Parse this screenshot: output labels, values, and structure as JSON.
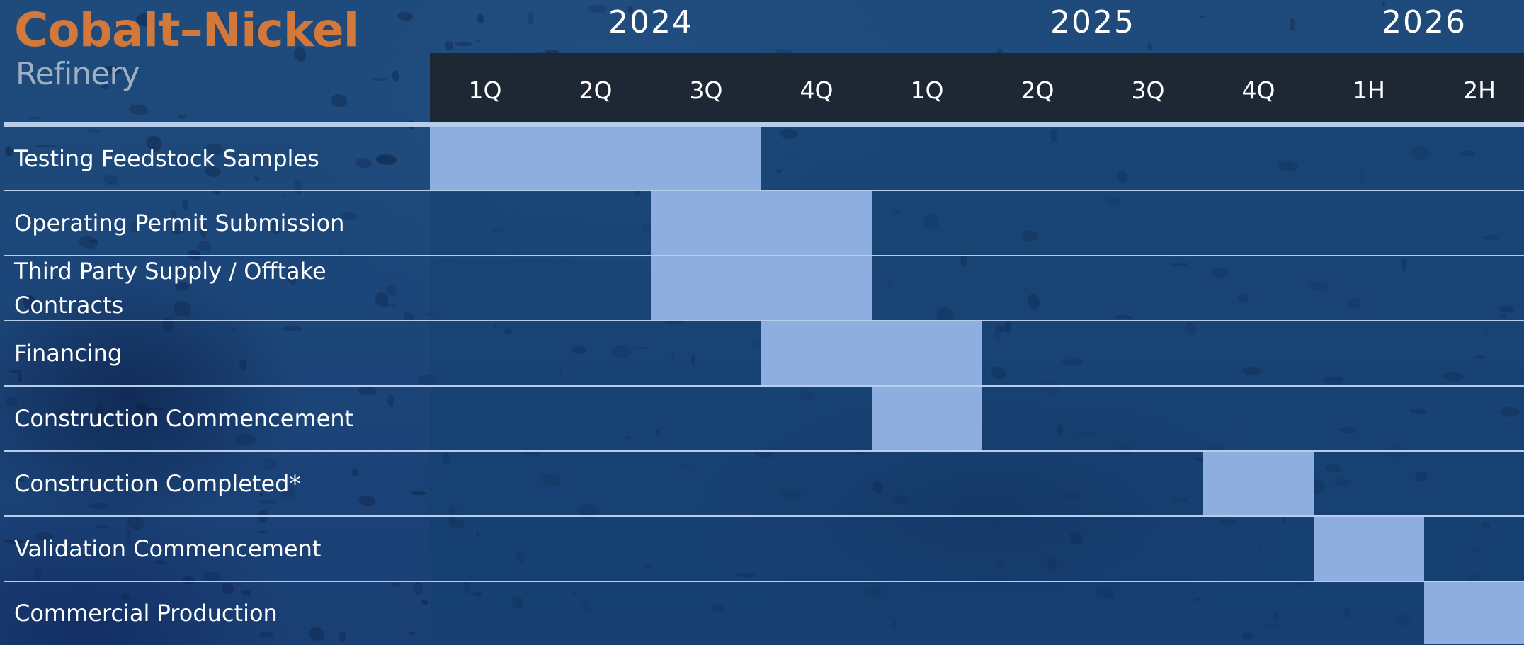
{
  "brand": {
    "title": "Cobalt–Nickel",
    "subtitle": "Refinery",
    "title_color": "#d2783a"
  },
  "colors": {
    "bar": "#8faee0",
    "header_band": "#1e2835",
    "row_line": "#b7cdec"
  },
  "chart_data": {
    "type": "gantt",
    "title": "",
    "years": [
      {
        "label": "2024",
        "from": 0,
        "to": 4
      },
      {
        "label": "2025",
        "from": 4,
        "to": 8
      },
      {
        "label": "2026",
        "from": 8,
        "to": 10
      }
    ],
    "periods": [
      "1Q",
      "2Q",
      "3Q",
      "4Q",
      "1Q",
      "2Q",
      "3Q",
      "4Q",
      "1H",
      "2H"
    ],
    "tasks": [
      {
        "label": "Testing Feedstock Samples",
        "start": 0,
        "end": 3
      },
      {
        "label": "Operating Permit Submission",
        "start": 2,
        "end": 4
      },
      {
        "label": "Third Party Supply / Offtake Contracts",
        "start": 2,
        "end": 4
      },
      {
        "label": "Financing",
        "start": 3,
        "end": 5
      },
      {
        "label": "Construction Commencement",
        "start": 4,
        "end": 5
      },
      {
        "label": "Construction Completed*",
        "start": 7,
        "end": 8
      },
      {
        "label": "Validation Commencement",
        "start": 8,
        "end": 9
      },
      {
        "label": "Commercial Production",
        "start": 9,
        "end": 10
      }
    ]
  }
}
